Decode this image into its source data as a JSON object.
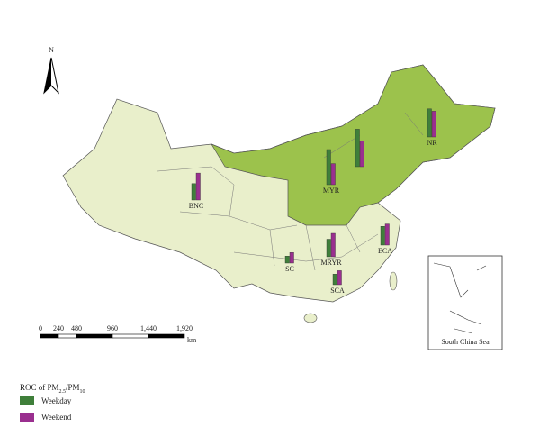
{
  "map": {
    "north_label": "N",
    "scale": {
      "labels": [
        "0",
        "240",
        "480",
        "960",
        "1,440",
        "1,920"
      ],
      "unit": "km"
    },
    "inset_label": "South China Sea",
    "regions": [
      {
        "label": "NR",
        "weekday": 24,
        "weekend": 22
      },
      {
        "label": "MYR",
        "weekday": 30,
        "weekend": 18
      },
      {
        "weekday": 32,
        "weekend": 22
      },
      {
        "label": "BNC",
        "weekday": 14,
        "weekend": 23
      },
      {
        "label": "MRYR",
        "weekday": 15,
        "weekend": 20
      },
      {
        "label": "ECA",
        "weekday": 16,
        "weekend": 18
      },
      {
        "label": "SC",
        "weekday": 6,
        "weekend": 9
      },
      {
        "label": "SCA",
        "weekday": 9,
        "weekend": 12
      }
    ],
    "legend": {
      "title": [
        "ROC of PM",
        "2.5",
        "/PM",
        "10"
      ],
      "entries": [
        {
          "name": "Weekday",
          "color": "#3f7f3a"
        },
        {
          "name": "Weekend",
          "color": "#9a2f8f"
        }
      ]
    }
  }
}
